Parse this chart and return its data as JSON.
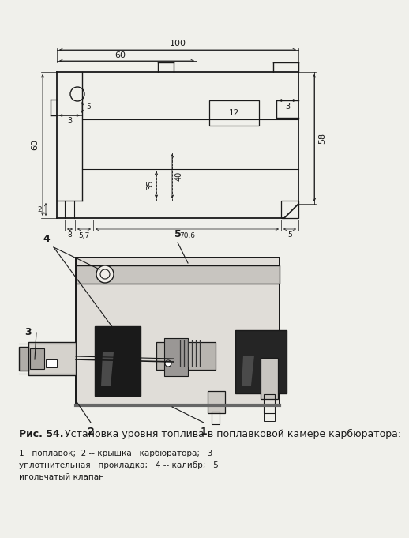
{
  "bg_color": "#f0f0eb",
  "line_color": "#1a1a1a",
  "title_bold": "Рис. 54.",
  "title_text": " Установка уровня топлива в поплавковой камере карбюратора:",
  "caption_line1": "1   поплавок;  2 -- крышка   карбюратора;   3",
  "caption_line2": "уплотнительная   прокладка;   4 -- калибр;   5",
  "caption_line3": "игольчатый клапан",
  "dim_100": "100",
  "dim_60": "60",
  "dim_3_left": "3",
  "dim_3_right": "3",
  "dim_58": "58",
  "dim_60_left": "60",
  "dim_12": "12",
  "dim_35": "35",
  "dim_40": "40",
  "dim_8": "8",
  "dim_57": "5,7",
  "dim_706": "70,6",
  "dim_5_right": "5",
  "dim_2": "2",
  "label_4": "4",
  "label_5": "5",
  "label_3": "3",
  "label_2": "2",
  "label_1": "1"
}
